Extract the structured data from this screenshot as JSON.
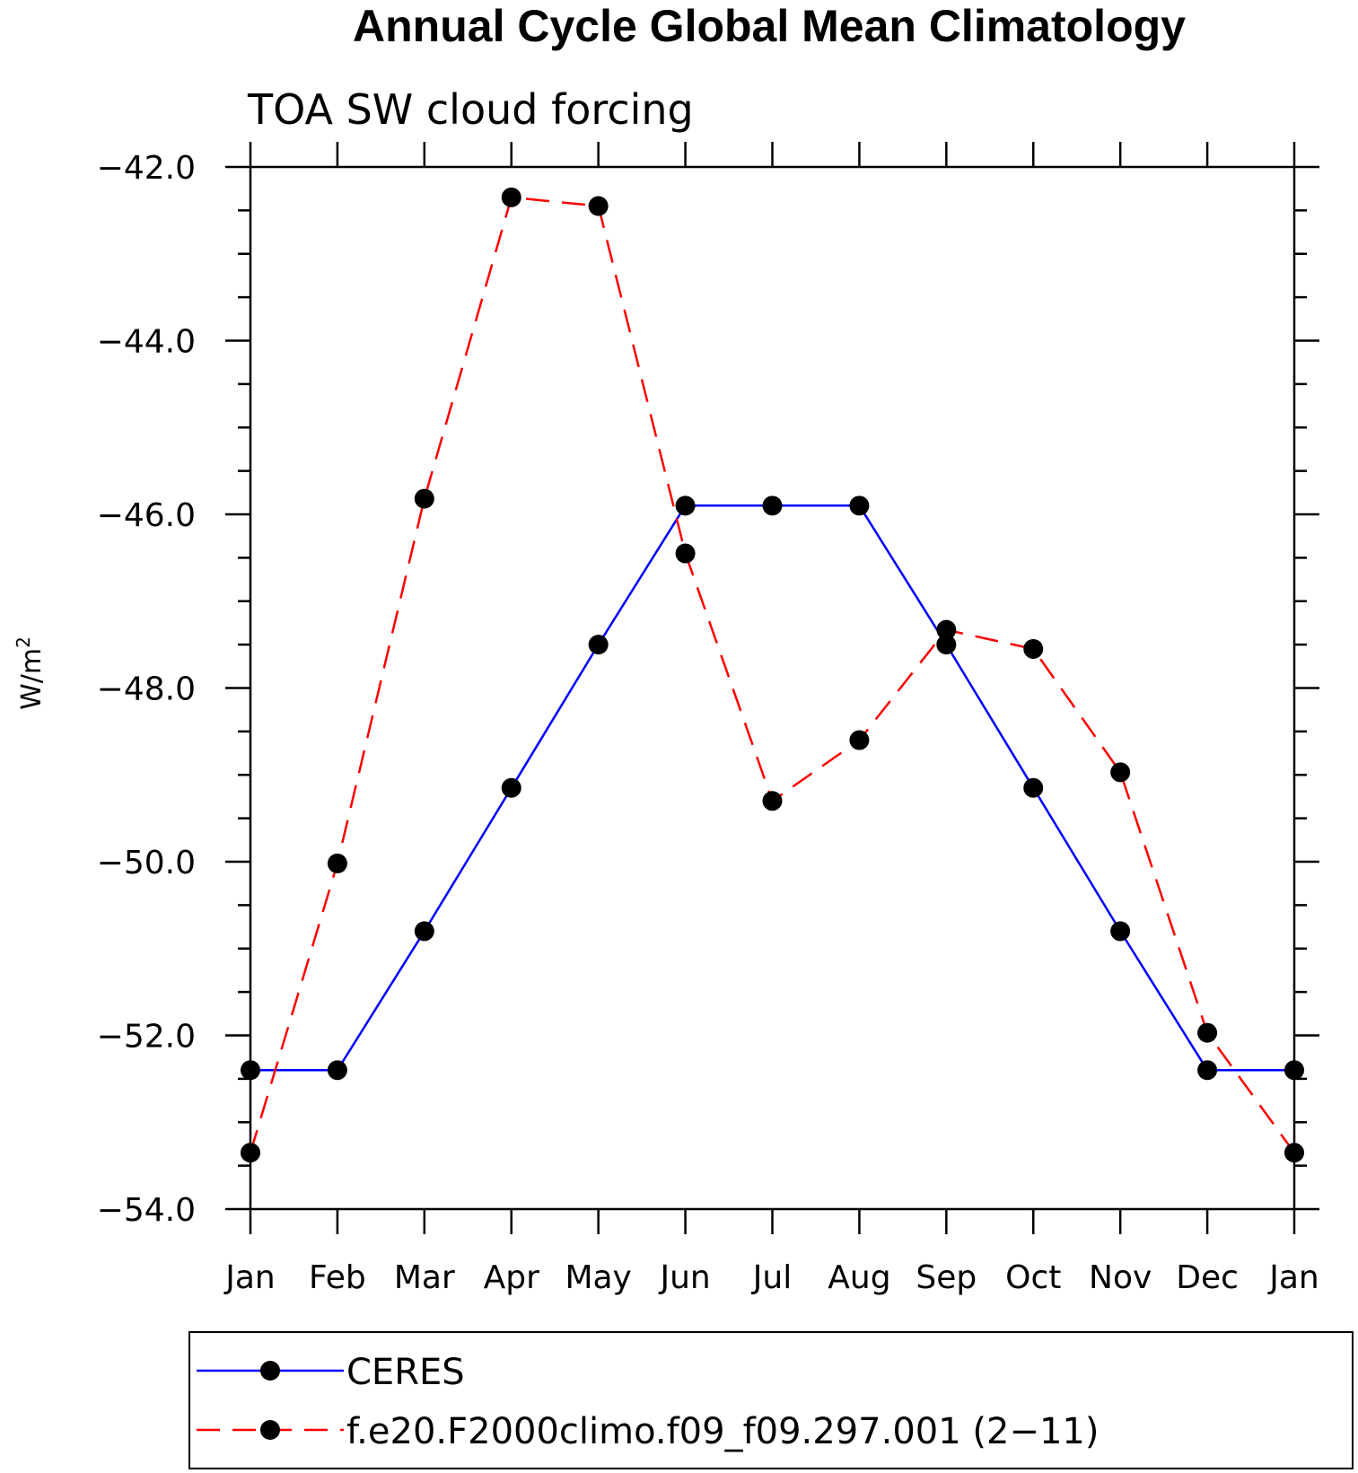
{
  "chart_data": {
    "type": "line",
    "title": "Annual Cycle Global Mean Climatology",
    "subtitle": "TOA SW cloud forcing",
    "ylabel": "W/m",
    "ylabel_sup": "2",
    "xlabel": "",
    "categories": [
      "Jan",
      "Feb",
      "Mar",
      "Apr",
      "May",
      "Jun",
      "Jul",
      "Aug",
      "Sep",
      "Oct",
      "Nov",
      "Dec",
      "Jan"
    ],
    "ylim": [
      -54.0,
      -42.0
    ],
    "yticks": [
      -42.0,
      -44.0,
      -46.0,
      -48.0,
      -50.0,
      -52.0,
      -54.0
    ],
    "ytick_labels": [
      "−42.0",
      "−44.0",
      "−46.0",
      "−48.0",
      "−50.0",
      "−52.0",
      "−54.0"
    ],
    "series": [
      {
        "name": "CERES",
        "color": "#0000ff",
        "dash": "solid",
        "marker": "filled-circle",
        "values": [
          -52.4,
          -52.4,
          -50.8,
          -49.15,
          -47.5,
          -45.9,
          -45.9,
          -45.9,
          -47.5,
          -49.15,
          -50.8,
          -52.4,
          -52.4
        ]
      },
      {
        "name": "f.e20.F2000climo.f09_f09.297.001 (2−11)",
        "color": "#ff0000",
        "dash": "dashed",
        "marker": "filled-circle",
        "values": [
          -53.35,
          -50.02,
          -45.82,
          -42.35,
          -42.45,
          -46.45,
          -49.3,
          -48.6,
          -47.33,
          -47.55,
          -48.97,
          -51.97,
          -53.35
        ]
      }
    ],
    "legend_position": "bottom",
    "grid": false
  }
}
